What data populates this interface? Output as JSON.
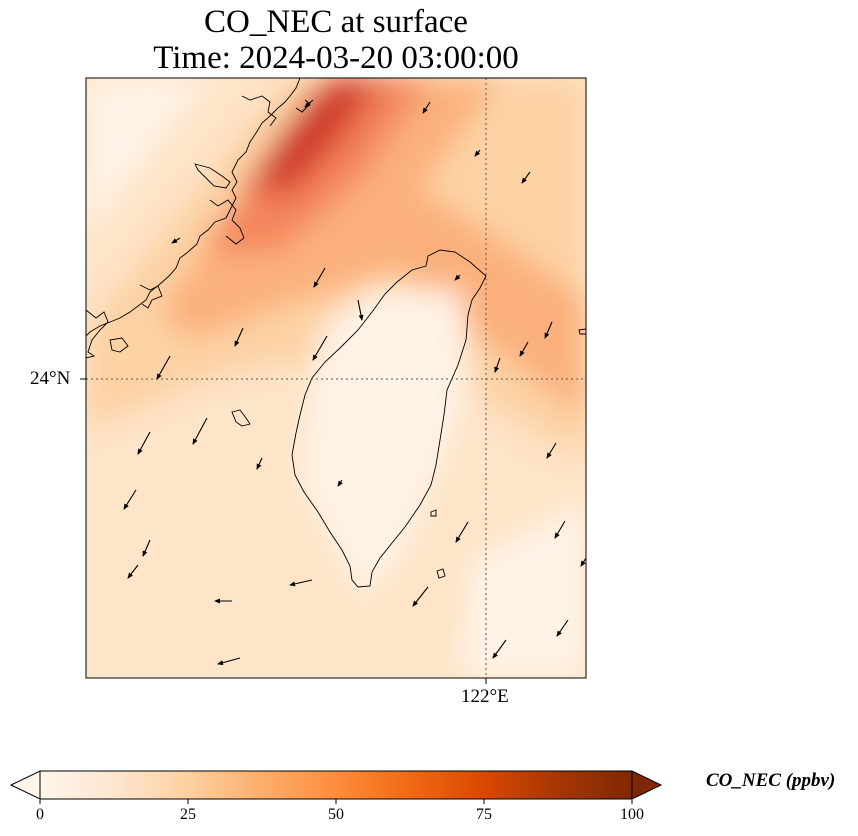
{
  "title": {
    "line1": "CO_NEC at surface",
    "line2": "Time: 2024-03-20 03:00:00"
  },
  "axes": {
    "lat_tick_label": "24°N",
    "lon_tick_label": "122°E",
    "gridlines": "dotted",
    "frame": "black"
  },
  "map": {
    "field": "CO_NEC",
    "level": "surface",
    "region": "Taiwan Strait / Taiwan",
    "coastlines": true,
    "wind_vectors": true
  },
  "colorbar": {
    "label": "CO_NEC (ppbv)",
    "ticks": [
      "0",
      "25",
      "50",
      "75",
      "100"
    ],
    "min": 0,
    "max": 100,
    "extend": "both",
    "colormap": [
      "#fff5eb",
      "#fee6ce",
      "#fdd0a2",
      "#fdae6b",
      "#fd8d3c",
      "#f16913",
      "#d94801",
      "#a63603",
      "#7f2704"
    ],
    "map_palette": [
      "#fff3e6",
      "#fee4c8",
      "#fdd2a4",
      "#fbb07c",
      "#f4855c",
      "#e05a41",
      "#cc3528"
    ]
  }
}
